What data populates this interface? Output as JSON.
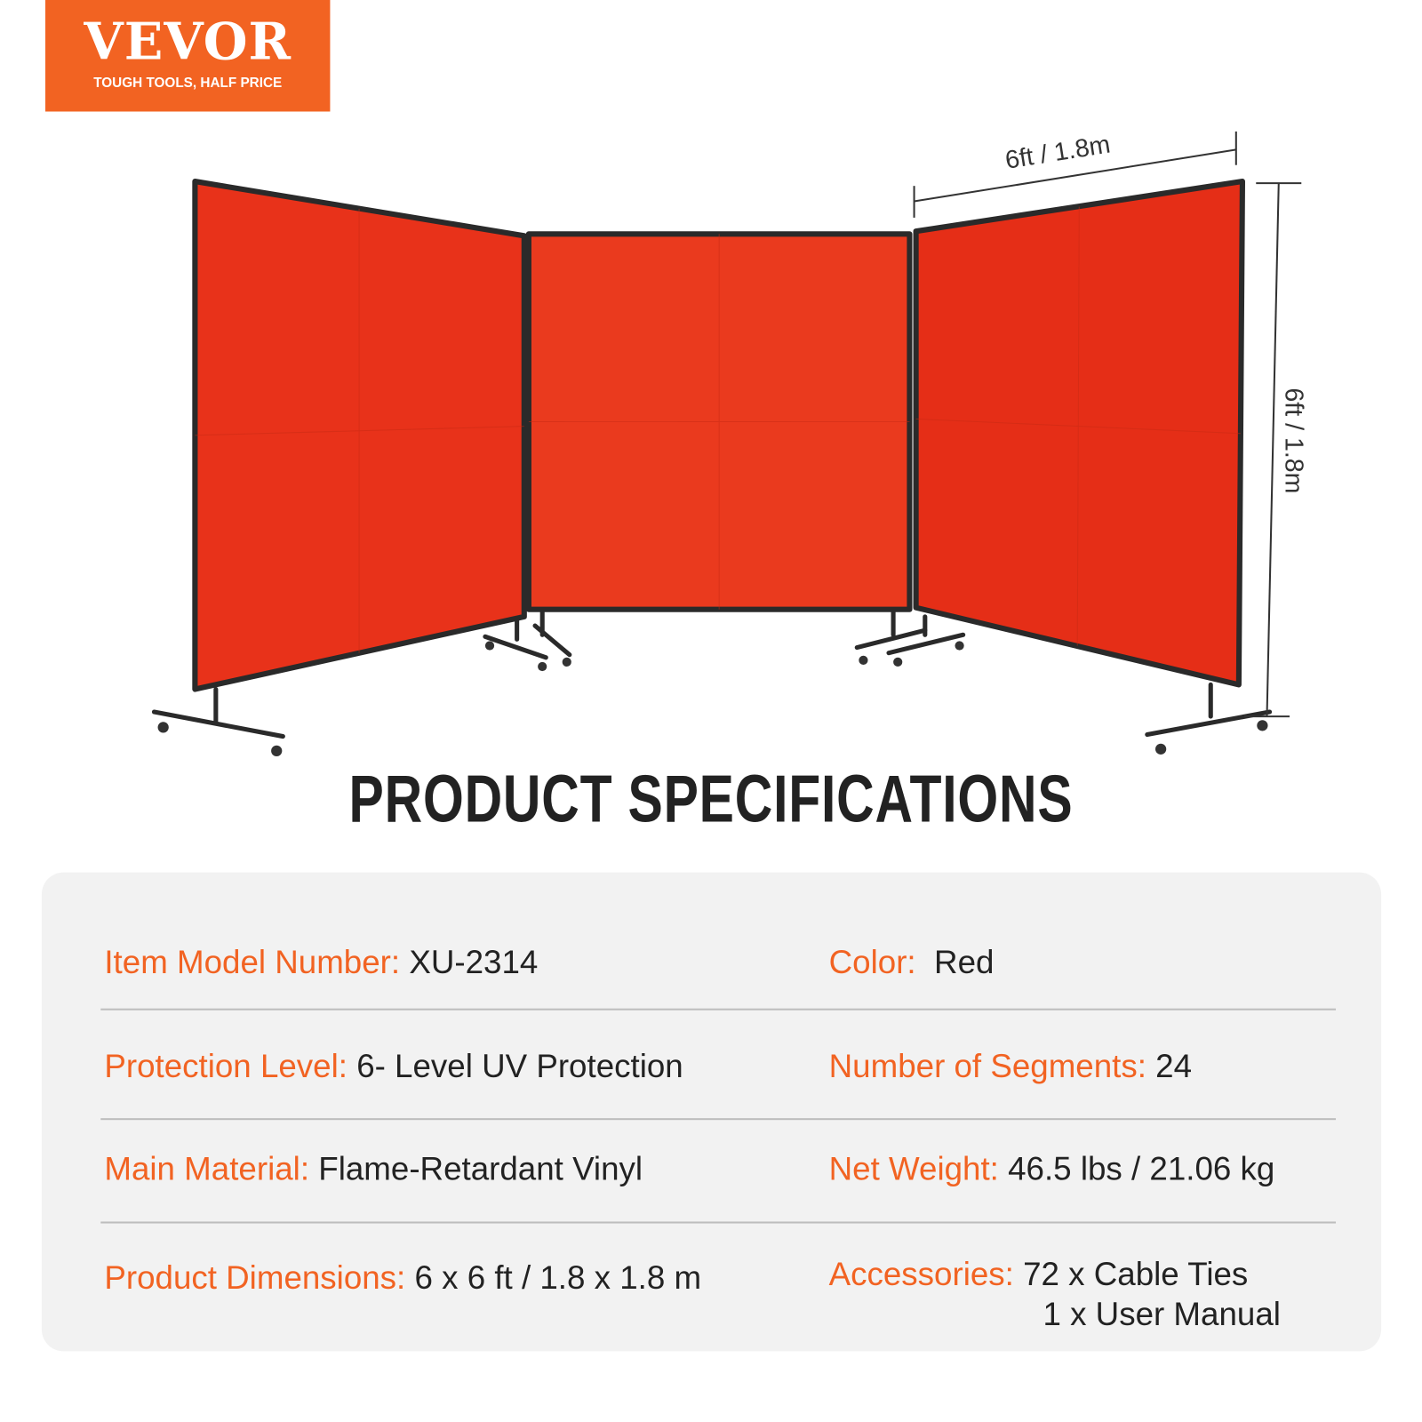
{
  "logo": {
    "brand": "VEVOR",
    "tagline": "TOUGH TOOLS, HALF PRICE",
    "color": "#f26322"
  },
  "product_image": {
    "screen_color": "#e8321a",
    "frame_color": "#2a2a2a",
    "panels": 3
  },
  "dimensions": {
    "width": "6ft / 1.8m",
    "height": "6ft / 1.8m"
  },
  "title": "PRODUCT SPECIFICATIONS",
  "specs": {
    "model": {
      "label": "Item Model Number:",
      "value": "XU-2314"
    },
    "color": {
      "label": "Color:",
      "value": "Red"
    },
    "protection": {
      "label": "Protection Level:",
      "value": "6- Level UV Protection"
    },
    "segments": {
      "label": "Number of Segments:",
      "value": "24"
    },
    "material": {
      "label": "Main Material:",
      "value": "Flame-Retardant Vinyl"
    },
    "weight": {
      "label": "Net Weight:",
      "value": "46.5 lbs / 21.06 kg"
    },
    "dimensions": {
      "label": "Product Dimensions:",
      "value": "6 x 6 ft / 1.8 x 1.8 m"
    },
    "accessories": {
      "label": "Accessories:",
      "value": "72 x Cable Ties",
      "value2": "1 x User Manual"
    }
  }
}
